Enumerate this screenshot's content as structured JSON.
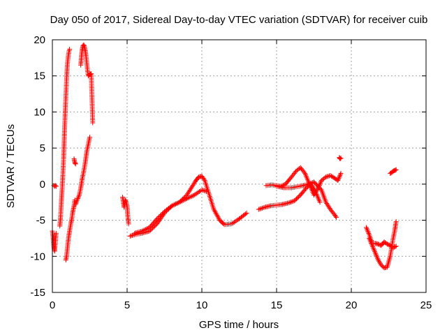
{
  "chart_data": {
    "type": "scatter",
    "title": "Day 050 of 2017, Sidereal Day-to-day VTEC variation (SDTVAR) for receiver cuib",
    "xlabel": "GPS time / hours",
    "ylabel": "SDTVAR / TECUs",
    "xlim": [
      0,
      25
    ],
    "ylim": [
      -15,
      20
    ],
    "xticks": [
      0,
      5,
      10,
      15,
      20,
      25
    ],
    "yticks": [
      -15,
      -10,
      -5,
      0,
      5,
      10,
      15,
      20
    ],
    "grid": true,
    "marker": "+",
    "color": "#ff0000",
    "series": [
      {
        "name": "seg-a1",
        "x": [
          0.0,
          0.05,
          0.1,
          0.15,
          0.2,
          0.25
        ],
        "y": [
          -6.5,
          -7.5,
          -8.8,
          -9.3,
          -8.0,
          -6.8
        ]
      },
      {
        "name": "seg-a2",
        "x": [
          0.1,
          0.15,
          0.2,
          0.25
        ],
        "y": [
          -0.2,
          -0.3,
          -0.2,
          -0.3
        ]
      },
      {
        "name": "seg-b",
        "x": [
          0.5,
          0.55,
          0.6,
          0.65,
          0.7,
          0.75,
          0.8,
          0.85,
          0.9,
          0.95,
          1.0,
          1.05,
          1.1,
          1.15
        ],
        "y": [
          -5.8,
          -4.5,
          -2.5,
          -0.8,
          1.2,
          3.5,
          6.5,
          9.5,
          12.0,
          14.5,
          16.5,
          17.5,
          18.3,
          18.7
        ]
      },
      {
        "name": "seg-c",
        "x": [
          0.9,
          0.95,
          1.0,
          1.05,
          1.1,
          1.15,
          1.2,
          1.25,
          1.3,
          1.35,
          1.4,
          1.45,
          1.5
        ],
        "y": [
          -10.5,
          -10.0,
          -9.0,
          -8.0,
          -7.2,
          -6.5,
          -5.9,
          -5.3,
          -4.8,
          -4.0,
          -3.5,
          -3.0,
          -2.2
        ]
      },
      {
        "name": "seg-d",
        "x": [
          1.45,
          1.5,
          1.55
        ],
        "y": [
          3.5,
          3.0,
          2.8
        ]
      },
      {
        "name": "seg-e",
        "x": [
          1.55,
          1.6,
          1.7,
          1.8,
          1.9,
          2.0,
          2.1,
          2.2,
          2.3,
          2.4,
          2.5
        ],
        "y": [
          -2.8,
          -2.5,
          -2.0,
          -1.5,
          -0.5,
          0.8,
          1.8,
          3.0,
          4.5,
          5.5,
          6.5
        ]
      },
      {
        "name": "seg-f",
        "x": [
          1.9,
          1.95,
          2.0,
          2.05,
          2.1,
          2.15,
          2.2,
          2.25,
          2.3,
          2.35,
          2.4,
          2.5,
          2.6,
          2.7
        ],
        "y": [
          16.5,
          17.8,
          18.7,
          19.2,
          19.3,
          19.0,
          18.5,
          17.8,
          16.8,
          15.8,
          15.0,
          15.2,
          15.3,
          8.5
        ]
      },
      {
        "name": "seg-g",
        "x": [
          4.7,
          4.75,
          4.8,
          4.85,
          4.9,
          5.0,
          5.05,
          5.1
        ],
        "y": [
          -1.8,
          -2.5,
          -3.2,
          -2.5,
          -2.2,
          -3.0,
          -4.5,
          -5.5
        ]
      },
      {
        "name": "seg-h",
        "x": [
          5.2,
          5.5,
          6.0,
          6.5,
          7.0,
          7.5,
          8.0,
          8.5,
          9.0,
          9.3,
          9.6,
          9.8,
          10.0,
          10.2,
          10.5,
          10.8,
          11.2,
          11.5,
          12.0,
          12.5,
          13.0
        ],
        "y": [
          -7.2,
          -7.0,
          -6.8,
          -6.5,
          -5.5,
          -4.0,
          -3.0,
          -2.5,
          -1.5,
          -0.5,
          0.5,
          1.0,
          1.1,
          0.5,
          -1.5,
          -3.5,
          -5.0,
          -5.6,
          -5.5,
          -4.8,
          -4.0
        ]
      },
      {
        "name": "seg-i",
        "x": [
          5.5,
          6.0,
          6.5,
          7.0,
          7.5,
          8.0,
          8.5,
          9.0,
          9.5,
          10.0,
          10.3
        ],
        "y": [
          -6.8,
          -6.5,
          -6.0,
          -4.8,
          -3.8,
          -3.0,
          -2.5,
          -2.0,
          -1.5,
          -0.8,
          -1.0
        ]
      },
      {
        "name": "seg-j",
        "x": [
          13.8,
          14.2,
          14.6,
          15.0,
          15.4,
          15.8,
          16.2,
          16.6,
          17.0,
          17.3,
          17.6,
          17.9
        ],
        "y": [
          -3.5,
          -3.2,
          -3.0,
          -2.9,
          -2.8,
          -2.6,
          -2.3,
          -1.5,
          -0.5,
          0.0,
          -1.0,
          -2.5
        ]
      },
      {
        "name": "seg-k",
        "x": [
          14.3,
          14.7,
          15.0,
          15.3,
          15.6,
          16.0,
          16.3,
          16.6,
          16.9,
          17.2,
          17.5,
          17.8,
          18.0,
          18.3,
          18.6,
          18.9,
          19.1,
          19.3
        ],
        "y": [
          -0.2,
          -0.1,
          -0.2,
          -0.3,
          0.0,
          1.0,
          1.8,
          2.3,
          1.5,
          0.0,
          -1.5,
          -0.5,
          0.5,
          1.0,
          1.2,
          0.8,
          0.5,
          1.5
        ]
      },
      {
        "name": "seg-l",
        "x": [
          15.0,
          15.5,
          16.0,
          16.5,
          17.0,
          17.5,
          18.0,
          18.3,
          18.6,
          18.9,
          19.0
        ],
        "y": [
          -0.3,
          -0.5,
          -0.5,
          -0.3,
          -0.1,
          0.3,
          -0.8,
          -2.5,
          -3.5,
          -4.3,
          -4.6
        ]
      },
      {
        "name": "seg-m",
        "x": [
          19.2,
          19.25,
          19.3
        ],
        "y": [
          3.7,
          3.5,
          3.6
        ]
      },
      {
        "name": "seg-n",
        "x": [
          21.0,
          21.2,
          21.4,
          21.6,
          21.8,
          22.0,
          22.2,
          22.4,
          22.6,
          22.8,
          23.0
        ],
        "y": [
          -6.0,
          -7.0,
          -8.2,
          -8.2,
          -8.3,
          -8.5,
          -8.0,
          -8.3,
          -8.5,
          -8.8,
          -8.6
        ]
      },
      {
        "name": "seg-o",
        "x": [
          21.2,
          21.4,
          21.6,
          21.8,
          22.0,
          22.2,
          22.4,
          22.6,
          22.8,
          22.9,
          23.0
        ],
        "y": [
          -7.5,
          -8.5,
          -9.5,
          -10.5,
          -11.2,
          -11.6,
          -11.5,
          -10.0,
          -7.5,
          -6.5,
          -5.2
        ]
      },
      {
        "name": "seg-p",
        "x": [
          22.6,
          22.7,
          22.8,
          22.9,
          23.0
        ],
        "y": [
          1.5,
          1.6,
          1.8,
          1.9,
          2.0
        ]
      }
    ]
  }
}
